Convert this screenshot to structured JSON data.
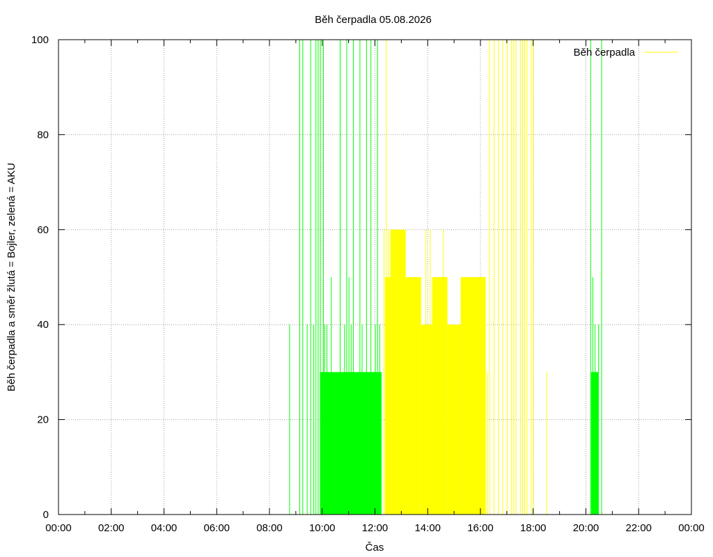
{
  "chart_data": {
    "type": "bar",
    "title": "Běh čerpadla 05.08.2026",
    "xlabel": "Čas",
    "ylabel": "Běh čerpadla a směr žlutá = Bojler, zelená = AKU",
    "xlim": [
      "00:00",
      "24:00"
    ],
    "ylim": [
      0,
      100
    ],
    "x_ticks": [
      "00:00",
      "02:00",
      "04:00",
      "06:00",
      "08:00",
      "10:00",
      "12:00",
      "14:00",
      "16:00",
      "18:00",
      "20:00",
      "22:00",
      "00:00"
    ],
    "y_ticks": [
      0,
      20,
      40,
      60,
      80,
      100
    ],
    "grid": true,
    "legend": {
      "position": "top-right",
      "entries": [
        "Běh čerpadla"
      ]
    },
    "colors": {
      "aku": "#00ff00",
      "bojler": "#ffff00",
      "grid": "#a0a0a0",
      "axis": "#000000"
    },
    "series": [
      {
        "color": "green",
        "spikes": [
          [
            "08:45",
            40
          ],
          [
            "09:08",
            100
          ],
          [
            "09:15",
            100
          ],
          [
            "09:25",
            40
          ],
          [
            "09:33",
            100
          ],
          [
            "09:40",
            40
          ],
          [
            "09:45",
            100
          ],
          [
            "09:50",
            100
          ],
          [
            "09:55",
            100
          ],
          [
            "10:02",
            100
          ],
          [
            "10:05",
            40
          ],
          [
            "10:10",
            40
          ],
          [
            "10:20",
            50
          ],
          [
            "10:40",
            100
          ],
          [
            "10:50",
            40
          ],
          [
            "10:55",
            100
          ],
          [
            "11:00",
            50
          ],
          [
            "11:05",
            40
          ],
          [
            "11:10",
            100
          ],
          [
            "11:25",
            100
          ],
          [
            "11:30",
            40
          ],
          [
            "11:40",
            100
          ],
          [
            "11:50",
            100
          ],
          [
            "12:00",
            40
          ],
          [
            "12:05",
            100
          ],
          [
            "12:10",
            40
          ],
          [
            "20:10",
            100
          ],
          [
            "20:15",
            50
          ],
          [
            "20:20",
            40
          ],
          [
            "20:28",
            40
          ],
          [
            "20:35",
            100
          ]
        ],
        "blocks": [
          {
            "start": "09:55",
            "end": "12:15",
            "value": 30
          },
          {
            "start": "20:12",
            "end": "20:28",
            "value": 30
          }
        ]
      },
      {
        "color": "yellow",
        "spikes": [
          [
            "12:20",
            60
          ],
          [
            "12:25",
            100
          ],
          [
            "12:30",
            60
          ],
          [
            "12:35",
            50
          ],
          [
            "12:45",
            60
          ],
          [
            "12:50",
            50
          ],
          [
            "13:00",
            60
          ],
          [
            "13:05",
            40
          ],
          [
            "13:15",
            50
          ],
          [
            "13:30",
            50
          ],
          [
            "13:40",
            40
          ],
          [
            "13:55",
            60
          ],
          [
            "14:05",
            60
          ],
          [
            "14:25",
            50
          ],
          [
            "14:35",
            60
          ],
          [
            "14:55",
            40
          ],
          [
            "15:00",
            30
          ],
          [
            "15:10",
            40
          ],
          [
            "15:20",
            50
          ],
          [
            "15:30",
            40
          ],
          [
            "15:40",
            50
          ],
          [
            "16:15",
            30
          ],
          [
            "16:20",
            100
          ],
          [
            "16:30",
            100
          ],
          [
            "16:40",
            100
          ],
          [
            "16:50",
            100
          ],
          [
            "17:00",
            100
          ],
          [
            "17:10",
            100
          ],
          [
            "17:15",
            100
          ],
          [
            "17:20",
            100
          ],
          [
            "17:30",
            100
          ],
          [
            "17:35",
            100
          ],
          [
            "17:40",
            100
          ],
          [
            "17:45",
            100
          ],
          [
            "17:55",
            100
          ],
          [
            "18:00",
            100
          ],
          [
            "18:30",
            30
          ]
        ],
        "blocks": [
          {
            "start": "12:23",
            "end": "12:35",
            "value": 50
          },
          {
            "start": "12:35",
            "end": "13:10",
            "value": 60
          },
          {
            "start": "13:10",
            "end": "13:45",
            "value": 50
          },
          {
            "start": "13:45",
            "end": "14:10",
            "value": 40
          },
          {
            "start": "14:10",
            "end": "14:45",
            "value": 50
          },
          {
            "start": "14:45",
            "end": "15:15",
            "value": 40
          },
          {
            "start": "15:15",
            "end": "16:12",
            "value": 50
          }
        ]
      }
    ]
  }
}
